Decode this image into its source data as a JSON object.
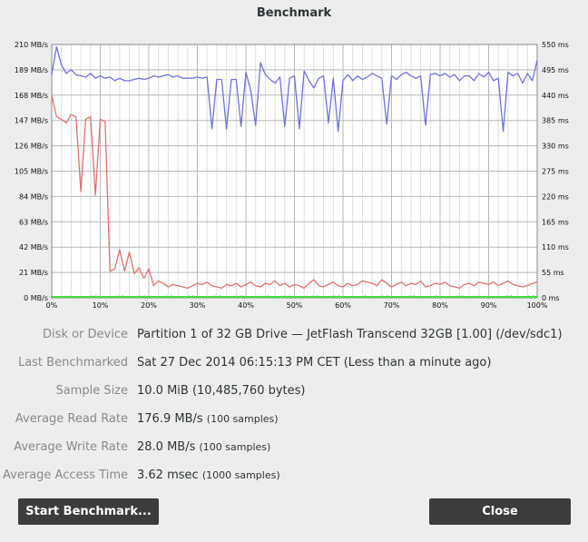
{
  "window": {
    "title": "Benchmark"
  },
  "chart_data": {
    "type": "line",
    "x": [
      0,
      1,
      2,
      3,
      4,
      5,
      6,
      7,
      8,
      9,
      10,
      11,
      12,
      13,
      14,
      15,
      16,
      17,
      18,
      19,
      20,
      21,
      22,
      23,
      24,
      25,
      26,
      27,
      28,
      29,
      30,
      31,
      32,
      33,
      34,
      35,
      36,
      37,
      38,
      39,
      40,
      41,
      42,
      43,
      44,
      45,
      46,
      47,
      48,
      49,
      50,
      51,
      52,
      53,
      54,
      55,
      56,
      57,
      58,
      59,
      60,
      61,
      62,
      63,
      64,
      65,
      66,
      67,
      68,
      69,
      70,
      71,
      72,
      73,
      74,
      75,
      76,
      77,
      78,
      79,
      80,
      81,
      82,
      83,
      84,
      85,
      86,
      87,
      88,
      89,
      90,
      91,
      92,
      93,
      94,
      95,
      96,
      97,
      98,
      99,
      100
    ],
    "series": [
      {
        "name": "",
        "color": "#7070e0",
        "axis": "left",
        "values": [
          185,
          208,
          193,
          186,
          189,
          185,
          184,
          183,
          186,
          182,
          184,
          182,
          183,
          180,
          182,
          180,
          180,
          181,
          182,
          181,
          182,
          184,
          183,
          184,
          185,
          183,
          184,
          182,
          182,
          182,
          183,
          182,
          183,
          140,
          181,
          181,
          140,
          181,
          181,
          142,
          187,
          172,
          143,
          195,
          185,
          181,
          178,
          183,
          142,
          182,
          184,
          140,
          188,
          180,
          174,
          182,
          184,
          145,
          182,
          138,
          180,
          185,
          180,
          184,
          181,
          183,
          186,
          184,
          182,
          144,
          184,
          181,
          185,
          187,
          184,
          182,
          184,
          143,
          185,
          186,
          184,
          186,
          183,
          185,
          180,
          184,
          184,
          180,
          186,
          183,
          187,
          180,
          182,
          138,
          187,
          184,
          186,
          178,
          186,
          180,
          197
        ]
      },
      {
        "name": "",
        "color": "#e07070",
        "axis": "left",
        "values": [
          168,
          150,
          148,
          145,
          152,
          150,
          88,
          148,
          150,
          85,
          148,
          146,
          22,
          24,
          40,
          22,
          38,
          20,
          25,
          16,
          24,
          10,
          14,
          12,
          9,
          11,
          10,
          9,
          8,
          10,
          12,
          11,
          13,
          10,
          9,
          8,
          11,
          10,
          12,
          9,
          11,
          13,
          10,
          9,
          12,
          11,
          14,
          10,
          12,
          9,
          11,
          10,
          8,
          12,
          15,
          10,
          9,
          11,
          13,
          10,
          9,
          12,
          10,
          11,
          14,
          13,
          12,
          10,
          15,
          12,
          9,
          11,
          13,
          10,
          12,
          11,
          14,
          9,
          10,
          12,
          11,
          13,
          10,
          9,
          8,
          11,
          12,
          10,
          13,
          12,
          11,
          13,
          10,
          12,
          14,
          11,
          10,
          9,
          10,
          12,
          13
        ]
      }
    ],
    "left_axis": {
      "min": 0,
      "max": 210,
      "ticks": [
        0,
        21,
        42,
        63,
        84,
        105,
        126,
        147,
        168,
        189,
        210
      ],
      "tick_labels": [
        "0 MB/s",
        "21 MB/s",
        "42 MB/s",
        "63 MB/s",
        "84 MB/s",
        "105 MB/s",
        "126 MB/s",
        "147 MB/s",
        "168 MB/s",
        "189 MB/s",
        "210 MB/s"
      ]
    },
    "right_axis": {
      "min": 0,
      "max": 550,
      "ticks": [
        0,
        55,
        110,
        165,
        220,
        275,
        330,
        385,
        440,
        495,
        550
      ],
      "tick_labels": [
        "0 ms",
        "55 ms",
        "110 ms",
        "165 ms",
        "220 ms",
        "275 ms",
        "330 ms",
        "385 ms",
        "440 ms",
        "495 ms",
        "550 ms"
      ]
    },
    "x_axis": {
      "min": 0,
      "max": 100,
      "ticks": [
        0,
        10,
        20,
        30,
        40,
        50,
        60,
        70,
        80,
        90,
        100
      ],
      "tick_labels": [
        "0%",
        "10%",
        "20%",
        "30%",
        "40%",
        "50%",
        "60%",
        "70%",
        "80%",
        "90%",
        "100%"
      ]
    },
    "access_points_color": "#44dd44",
    "grid": true
  },
  "info": {
    "rows": [
      {
        "label": "Disk or Device",
        "value": "Partition 1 of 32 GB Drive — JetFlash Transcend 32GB [1.00] (/dev/sdc1)",
        "note": ""
      },
      {
        "label": "Last Benchmarked",
        "value": "Sat 27 Dec 2014 06:15:13 PM CET (Less than a minute ago)",
        "note": ""
      },
      {
        "label": "Sample Size",
        "value": "10.0 MiB (10,485,760 bytes)",
        "note": ""
      },
      {
        "label": "Average Read Rate",
        "value": "176.9 MB/s",
        "note": "(100 samples)"
      },
      {
        "label": "Average Write Rate",
        "value": "28.0 MB/s",
        "note": "(100 samples)"
      },
      {
        "label": "Average Access Time",
        "value": "3.62 msec",
        "note": "(1000 samples)"
      }
    ]
  },
  "buttons": {
    "start": "Start Benchmark...",
    "close": "Close"
  }
}
